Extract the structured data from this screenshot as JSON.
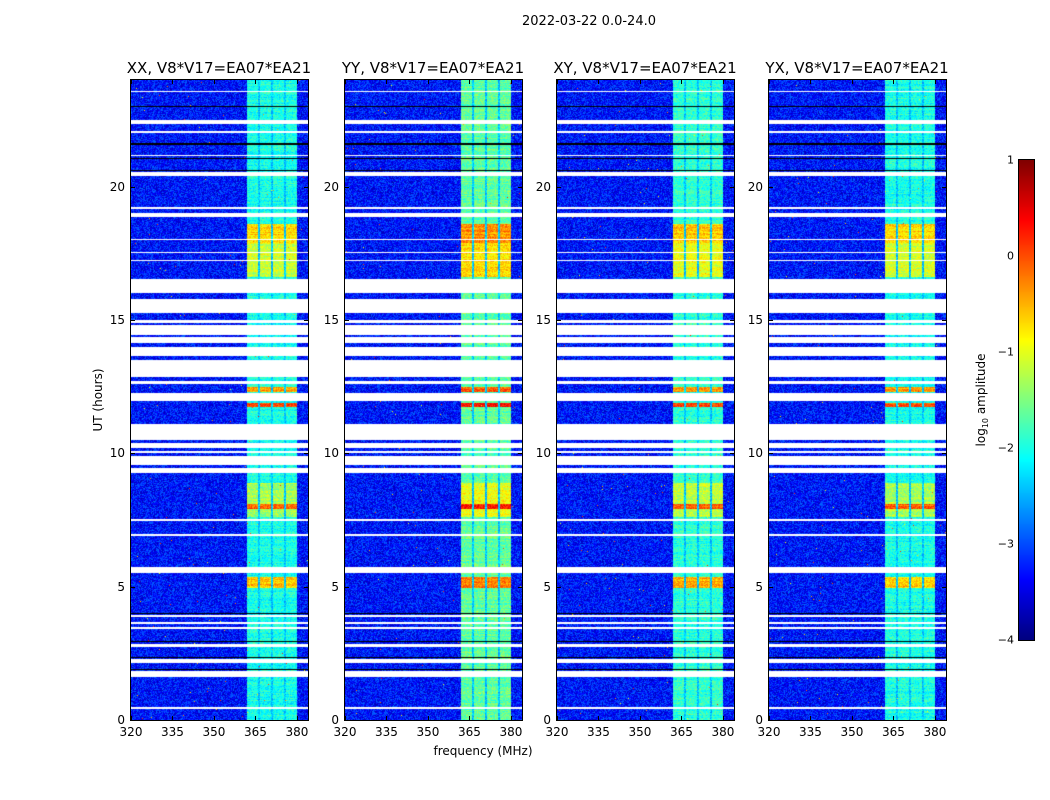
{
  "suptitle": "2022-03-22 0.0-24.0",
  "chart_data": {
    "type": "heatmap",
    "xlabel": "frequency (MHz)",
    "ylabel": "UT (hours)",
    "xlim": [
      320,
      384
    ],
    "ylim": [
      0,
      24
    ],
    "xticks": [
      "320",
      "335",
      "350",
      "365",
      "380"
    ],
    "xtick_values": [
      320,
      335,
      350,
      365,
      380
    ],
    "yticks": [
      "0",
      "5",
      "10",
      "15",
      "20"
    ],
    "ytick_values": [
      0,
      5,
      10,
      15,
      20
    ],
    "colorbar": {
      "label_main": "log",
      "label_sub": "10",
      "label_rest": " amplitude",
      "range": [
        -4,
        1
      ],
      "ticks": [
        "1",
        "0",
        "−1",
        "−2",
        "−3",
        "−4"
      ],
      "tick_values": [
        1,
        0,
        -1,
        -2,
        -3,
        -4
      ],
      "colormap": "jet"
    },
    "panels": [
      {
        "title": "XX, V8*V17=EA07*EA21",
        "boost": 0.0
      },
      {
        "title": "YY, V8*V17=EA07*EA21",
        "boost": 0.35
      },
      {
        "title": "XY, V8*V17=EA07*EA21",
        "boost": 0.1
      },
      {
        "title": "YX, V8*V17=EA07*EA21",
        "boost": 0.0
      }
    ],
    "background_log_amplitude": -3.3,
    "rfi_band_mhz": [
      [
        362,
        366
      ],
      [
        366.8,
        370.5
      ],
      [
        371.5,
        375.2
      ],
      [
        376,
        380
      ]
    ],
    "band_log_amplitude": -2.0,
    "bright_intervals_hours": [
      {
        "t": [
          4.95,
          5.35
        ],
        "level": -0.6
      },
      {
        "t": [
          7.6,
          8.9
        ],
        "level": -1.3
      },
      {
        "t": [
          7.9,
          8.1
        ],
        "level": -0.1
      },
      {
        "t": [
          11.75,
          11.9
        ],
        "level": 0.0
      },
      {
        "t": [
          12.3,
          12.5
        ],
        "level": -0.4
      },
      {
        "t": [
          16.6,
          18.6
        ],
        "level": -1.1
      },
      {
        "t": [
          17.9,
          18.6
        ],
        "level": -0.7
      }
    ],
    "flagged_intervals_hours": [
      [
        0.4,
        0.5
      ],
      [
        1.6,
        1.85
      ],
      [
        2.15,
        2.3
      ],
      [
        2.75,
        2.85
      ],
      [
        3.4,
        3.47
      ],
      [
        3.6,
        3.66
      ],
      [
        3.85,
        3.95
      ],
      [
        5.5,
        5.72
      ],
      [
        6.9,
        6.97
      ],
      [
        7.45,
        7.52
      ],
      [
        9.25,
        9.45
      ],
      [
        9.55,
        9.9
      ],
      [
        10.0,
        10.08
      ],
      [
        10.2,
        10.4
      ],
      [
        10.5,
        11.1
      ],
      [
        11.95,
        12.25
      ],
      [
        12.6,
        12.7
      ],
      [
        12.85,
        13.5
      ],
      [
        13.65,
        14.0
      ],
      [
        14.15,
        14.35
      ],
      [
        14.45,
        14.8
      ],
      [
        14.9,
        15.0
      ],
      [
        15.25,
        15.8
      ],
      [
        16.0,
        16.55
      ],
      [
        17.2,
        17.25
      ],
      [
        17.5,
        17.55
      ],
      [
        18.0,
        18.05
      ],
      [
        18.85,
        19.0
      ],
      [
        19.15,
        19.25
      ],
      [
        20.4,
        20.55
      ],
      [
        21.15,
        21.2
      ],
      [
        22.0,
        22.1
      ],
      [
        22.35,
        22.5
      ],
      [
        23.55,
        23.6
      ]
    ],
    "scan_boundaries_hours": [
      1.9,
      2.35,
      2.95,
      4.0,
      20.6,
      21.05,
      21.6,
      23.0
    ]
  }
}
